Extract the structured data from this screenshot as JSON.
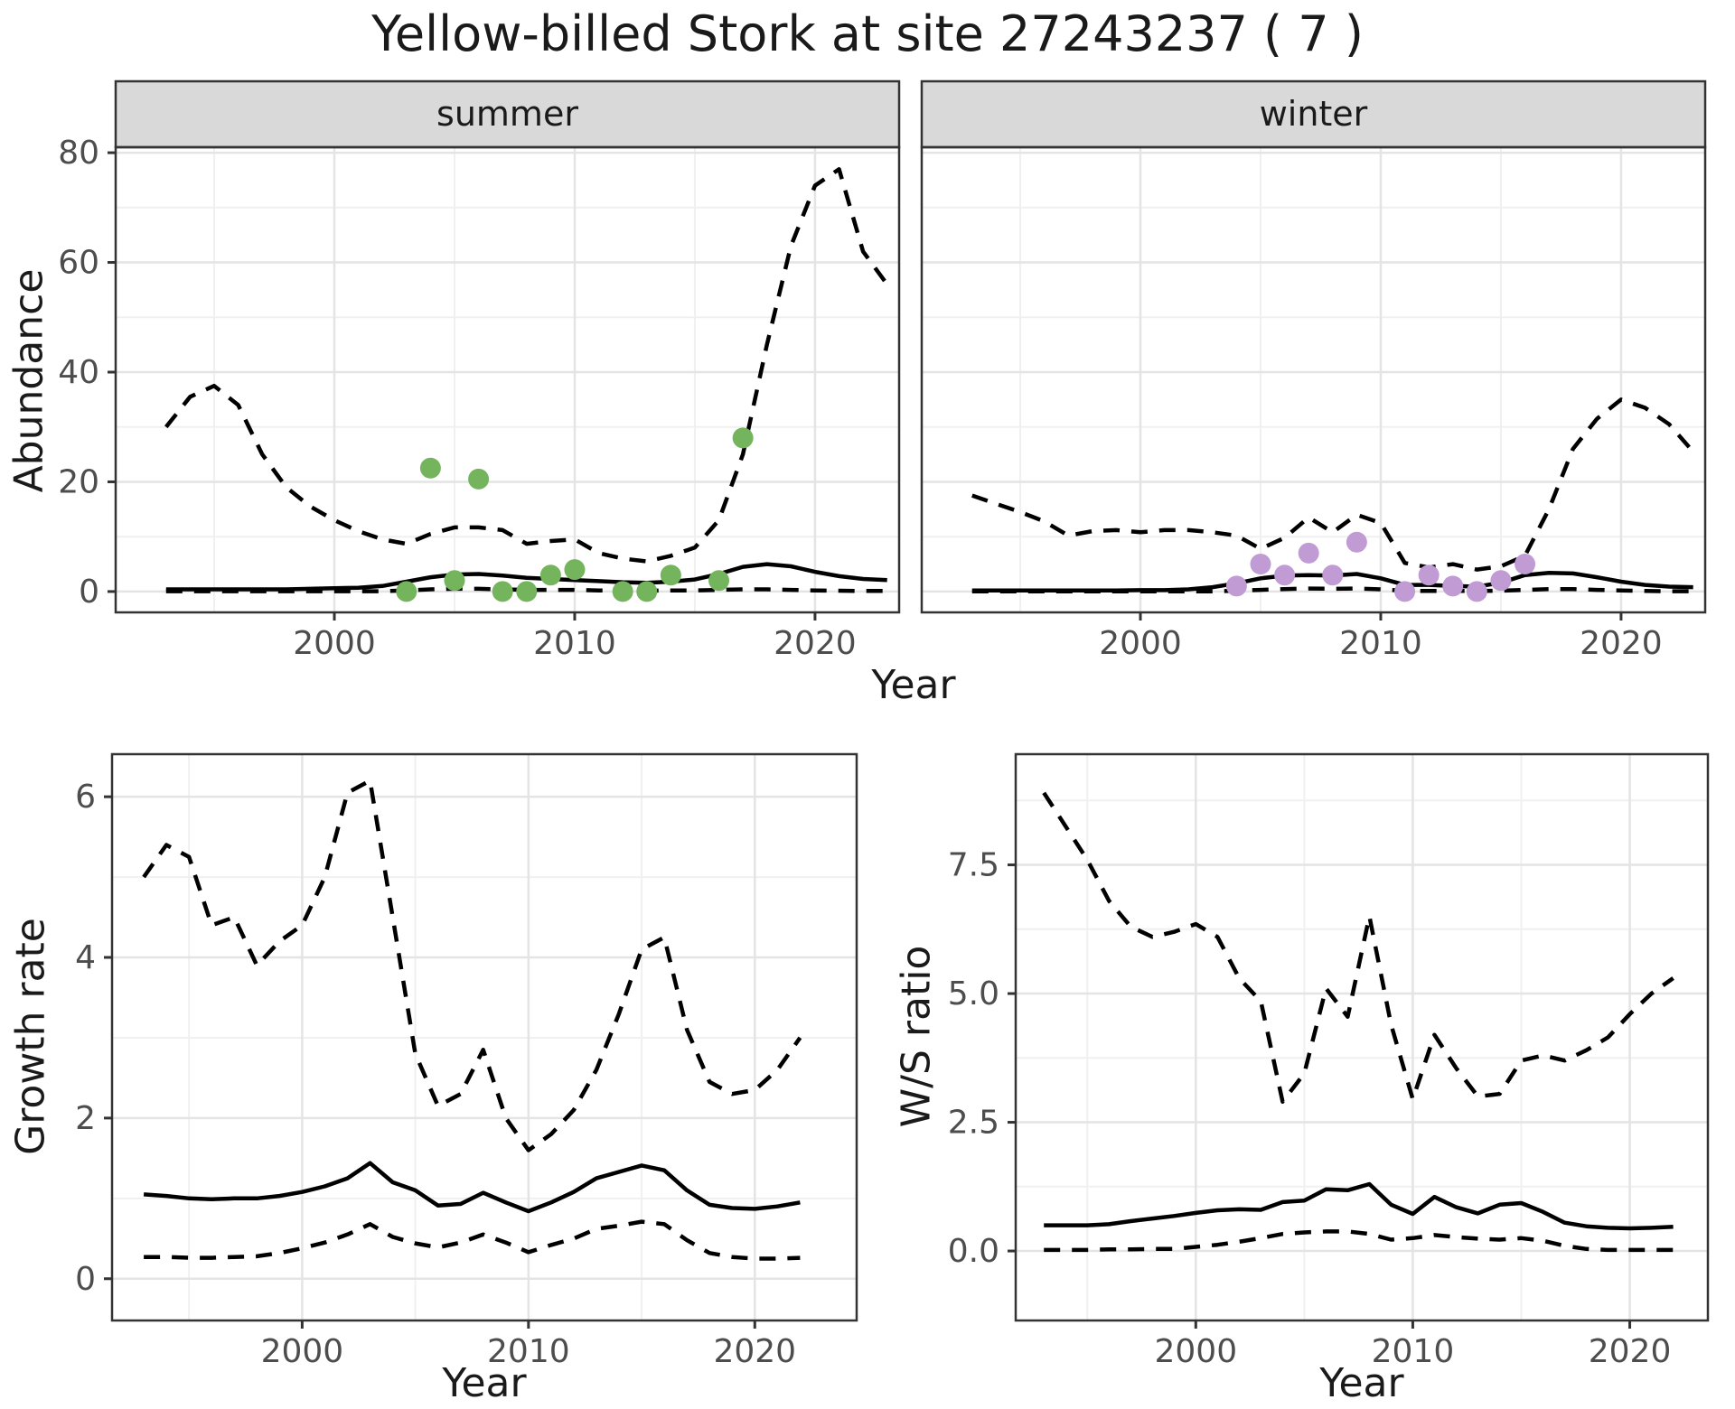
{
  "title": "Yellow-billed Stork at site 27243237 ( 7 )",
  "top_row": {
    "facets": [
      {
        "label": "summer"
      },
      {
        "label": "winter"
      }
    ],
    "ylabel": "Abundance",
    "xlabel": "Year"
  },
  "bottom_row": {
    "left": {
      "ylabel": "Growth rate",
      "xlabel": "Year"
    },
    "right": {
      "ylabel": "W/S ratio",
      "xlabel": "Year"
    }
  },
  "colors": {
    "summer_point": "#74b45c",
    "winter_point": "#c09bd4",
    "strip_bg": "#d9d9d9",
    "panel_border": "#333333",
    "grid_major": "#e4e4e4",
    "grid_minor": "#f0f0f0",
    "line": "#000000",
    "tick_label": "#4d4d4d"
  },
  "chart_data": [
    {
      "id": "abundance-summer",
      "type": "line",
      "facet": "summer",
      "title": "",
      "xlabel": "Year",
      "ylabel": "Abundance",
      "x": [
        1993,
        1994,
        1995,
        1996,
        1997,
        1998,
        1999,
        2000,
        2001,
        2002,
        2003,
        2004,
        2005,
        2006,
        2007,
        2008,
        2009,
        2010,
        2011,
        2012,
        2013,
        2014,
        2015,
        2016,
        2017,
        2018,
        2019,
        2020,
        2021,
        2022,
        2023
      ],
      "series": [
        {
          "name": "median",
          "style": "solid",
          "values": [
            0.4,
            0.4,
            0.4,
            0.4,
            0.4,
            0.4,
            0.5,
            0.6,
            0.7,
            1.0,
            1.8,
            2.6,
            3.1,
            3.2,
            2.9,
            2.5,
            2.3,
            2.1,
            1.9,
            1.7,
            1.6,
            1.8,
            2.2,
            3.2,
            4.5,
            5.0,
            4.6,
            3.6,
            2.8,
            2.3,
            2.1
          ]
        },
        {
          "name": "upper-ci",
          "style": "dashed",
          "values": [
            30,
            35.5,
            37.5,
            34,
            25,
            19,
            15.5,
            13,
            11,
            9.5,
            8.7,
            10.5,
            11.7,
            11.7,
            11.2,
            8.7,
            9.2,
            9.5,
            7,
            6,
            5.5,
            6.5,
            8,
            13,
            25,
            45,
            63,
            74,
            77,
            62,
            56
          ]
        },
        {
          "name": "lower-ci",
          "style": "dashed",
          "values": [
            0.05,
            0.05,
            0.05,
            0.05,
            0.05,
            0.05,
            0.05,
            0.05,
            0.05,
            0.05,
            0.2,
            0.4,
            0.5,
            0.5,
            0.4,
            0.3,
            0.3,
            0.3,
            0.2,
            0.15,
            0.15,
            0.2,
            0.2,
            0.3,
            0.4,
            0.4,
            0.3,
            0.2,
            0.15,
            0.1,
            0.1
          ]
        }
      ],
      "points": {
        "color": "#74b45c",
        "x": [
          2003,
          2004,
          2005,
          2006,
          2007,
          2008,
          2009,
          2010,
          2012,
          2013,
          2014,
          2016,
          2017
        ],
        "y": [
          0,
          22.5,
          2,
          20.5,
          0,
          0,
          3,
          4,
          0,
          0,
          3,
          2,
          28
        ]
      },
      "xlim": [
        1990.9,
        2023.5
      ],
      "ylim": [
        -3.8,
        81
      ],
      "xticks": [
        2000,
        2010,
        2020
      ],
      "xtick_labels": [
        "2000",
        "2010",
        "2020"
      ],
      "yticks": [
        0,
        20,
        40,
        60,
        80
      ],
      "ytick_labels": [
        "0",
        "20",
        "40",
        "60",
        "80"
      ],
      "xminor": [
        1995,
        2005,
        2015
      ],
      "yminor": [
        10,
        30,
        50,
        70
      ],
      "grid": true,
      "legend": "none"
    },
    {
      "id": "abundance-winter",
      "type": "line",
      "facet": "winter",
      "title": "",
      "xlabel": "Year",
      "ylabel": "Abundance",
      "x": [
        1993,
        1994,
        1995,
        1996,
        1997,
        1998,
        1999,
        2000,
        2001,
        2002,
        2003,
        2004,
        2005,
        2006,
        2007,
        2008,
        2009,
        2010,
        2011,
        2012,
        2013,
        2014,
        2015,
        2016,
        2017,
        2018,
        2019,
        2020,
        2021,
        2022,
        2023
      ],
      "series": [
        {
          "name": "median",
          "style": "solid",
          "values": [
            0.2,
            0.2,
            0.2,
            0.2,
            0.2,
            0.2,
            0.2,
            0.25,
            0.25,
            0.4,
            0.8,
            1.5,
            2.4,
            2.9,
            3.0,
            2.9,
            3.2,
            2.4,
            1.2,
            1.2,
            1.0,
            0.9,
            1.6,
            3.0,
            3.4,
            3.3,
            2.6,
            1.8,
            1.2,
            0.9,
            0.8
          ]
        },
        {
          "name": "upper-ci",
          "style": "dashed",
          "values": [
            17.5,
            16,
            14.5,
            12.8,
            10.2,
            11,
            11.2,
            10.8,
            11.2,
            11.2,
            10.8,
            10.2,
            7.8,
            9.8,
            13.5,
            10.8,
            14,
            12.5,
            5.2,
            4.4,
            5.0,
            4.0,
            4.6,
            6.5,
            15,
            26,
            31.5,
            35,
            33.5,
            30.5,
            25.5
          ]
        },
        {
          "name": "lower-ci",
          "style": "dashed",
          "values": [
            0.03,
            0.03,
            0.03,
            0.03,
            0.03,
            0.03,
            0.03,
            0.03,
            0.03,
            0.03,
            0.03,
            0.15,
            0.3,
            0.45,
            0.55,
            0.5,
            0.55,
            0.4,
            0.15,
            0.1,
            0.1,
            0.1,
            0.15,
            0.3,
            0.45,
            0.45,
            0.3,
            0.2,
            0.1,
            0.05,
            0.05
          ]
        }
      ],
      "points": {
        "color": "#c09bd4",
        "x": [
          2004,
          2005,
          2006,
          2007,
          2008,
          2009,
          2011,
          2012,
          2013,
          2014,
          2015,
          2016
        ],
        "y": [
          1,
          5,
          3,
          7,
          3,
          9,
          0,
          3,
          1,
          0,
          2,
          5
        ]
      },
      "xlim": [
        1990.9,
        2023.5
      ],
      "ylim": [
        -3.8,
        81
      ],
      "xticks": [
        2000,
        2010,
        2020
      ],
      "xtick_labels": [
        "2000",
        "2010",
        "2020"
      ],
      "yticks": [
        0,
        20,
        40,
        60,
        80
      ],
      "ytick_labels": [],
      "xminor": [
        1995,
        2005,
        2015
      ],
      "yminor": [
        10,
        30,
        50,
        70
      ],
      "grid": true,
      "legend": "none"
    },
    {
      "id": "growth-rate",
      "type": "line",
      "facet": "",
      "title": "",
      "xlabel": "Year",
      "ylabel": "Growth rate",
      "x": [
        1993,
        1994,
        1995,
        1996,
        1997,
        1998,
        1999,
        2000,
        2001,
        2002,
        2003,
        2004,
        2005,
        2006,
        2007,
        2008,
        2009,
        2010,
        2011,
        2012,
        2013,
        2014,
        2015,
        2016,
        2017,
        2018,
        2019,
        2020,
        2021,
        2022
      ],
      "series": [
        {
          "name": "median",
          "style": "solid",
          "values": [
            1.05,
            1.03,
            1.0,
            0.99,
            1.0,
            1.0,
            1.03,
            1.08,
            1.15,
            1.25,
            1.44,
            1.2,
            1.1,
            0.91,
            0.93,
            1.07,
            0.95,
            0.84,
            0.95,
            1.08,
            1.25,
            1.33,
            1.41,
            1.35,
            1.1,
            0.92,
            0.88,
            0.87,
            0.9,
            0.95
          ]
        },
        {
          "name": "upper-ci",
          "style": "dashed",
          "values": [
            5.0,
            5.4,
            5.25,
            4.4,
            4.5,
            3.9,
            4.2,
            4.4,
            5.0,
            6.05,
            6.2,
            4.5,
            2.8,
            2.15,
            2.3,
            2.85,
            2.0,
            1.6,
            1.8,
            2.1,
            2.6,
            3.3,
            4.1,
            4.25,
            3.1,
            2.45,
            2.3,
            2.35,
            2.6,
            3.0
          ]
        },
        {
          "name": "lower-ci",
          "style": "dashed",
          "values": [
            0.27,
            0.27,
            0.26,
            0.26,
            0.27,
            0.28,
            0.32,
            0.38,
            0.45,
            0.55,
            0.68,
            0.52,
            0.44,
            0.39,
            0.45,
            0.55,
            0.45,
            0.33,
            0.42,
            0.5,
            0.62,
            0.66,
            0.71,
            0.68,
            0.48,
            0.32,
            0.27,
            0.25,
            0.25,
            0.26
          ]
        }
      ],
      "points": null,
      "xlim": [
        1991.6,
        2024.5
      ],
      "ylim": [
        -0.52,
        6.53
      ],
      "xticks": [
        2000,
        2010,
        2020
      ],
      "xtick_labels": [
        "2000",
        "2010",
        "2020"
      ],
      "yticks": [
        0,
        2,
        4,
        6
      ],
      "ytick_labels": [
        "0",
        "2",
        "4",
        "6"
      ],
      "xminor": [
        1995,
        2005,
        2015
      ],
      "yminor": [
        1,
        3,
        5
      ],
      "grid": true,
      "legend": "none"
    },
    {
      "id": "ws-ratio",
      "type": "line",
      "facet": "",
      "title": "",
      "xlabel": "Year",
      "ylabel": "W/S ratio",
      "x": [
        1993,
        1994,
        1995,
        1996,
        1997,
        1998,
        1999,
        2000,
        2001,
        2002,
        2003,
        2004,
        2005,
        2006,
        2007,
        2008,
        2009,
        2010,
        2011,
        2012,
        2013,
        2014,
        2015,
        2016,
        2017,
        2018,
        2019,
        2020,
        2021,
        2022
      ],
      "series": [
        {
          "name": "median",
          "style": "solid",
          "values": [
            0.5,
            0.5,
            0.5,
            0.52,
            0.58,
            0.63,
            0.68,
            0.74,
            0.79,
            0.81,
            0.8,
            0.95,
            0.98,
            1.2,
            1.18,
            1.3,
            0.9,
            0.72,
            1.05,
            0.85,
            0.73,
            0.9,
            0.93,
            0.76,
            0.55,
            0.48,
            0.45,
            0.44,
            0.45,
            0.47
          ]
        },
        {
          "name": "upper-ci",
          "style": "dashed",
          "values": [
            8.9,
            8.25,
            7.6,
            6.8,
            6.3,
            6.1,
            6.2,
            6.35,
            6.1,
            5.3,
            4.85,
            2.9,
            3.45,
            5.1,
            4.55,
            6.5,
            4.4,
            2.95,
            4.2,
            3.55,
            3.0,
            3.05,
            3.7,
            3.8,
            3.7,
            3.9,
            4.15,
            4.6,
            5.0,
            5.3
          ]
        },
        {
          "name": "lower-ci",
          "style": "dashed",
          "values": [
            0.02,
            0.02,
            0.02,
            0.03,
            0.03,
            0.04,
            0.04,
            0.08,
            0.12,
            0.18,
            0.25,
            0.33,
            0.36,
            0.38,
            0.38,
            0.33,
            0.22,
            0.25,
            0.31,
            0.27,
            0.24,
            0.22,
            0.25,
            0.2,
            0.1,
            0.04,
            0.02,
            0.02,
            0.02,
            0.02
          ]
        }
      ],
      "points": null,
      "xlim": [
        1991.7,
        2023.6
      ],
      "ylim": [
        -1.35,
        9.65
      ],
      "xticks": [
        2000,
        2010,
        2020
      ],
      "xtick_labels": [
        "2000",
        "2010",
        "2020"
      ],
      "yticks": [
        0,
        2.5,
        5,
        7.5
      ],
      "ytick_labels": [
        "0.0",
        "2.5",
        "5.0",
        "7.5"
      ],
      "xminor": [
        1995,
        2005,
        2015
      ],
      "yminor": [
        1.25,
        3.75,
        6.25,
        8.75
      ],
      "grid": true,
      "legend": "none"
    }
  ]
}
